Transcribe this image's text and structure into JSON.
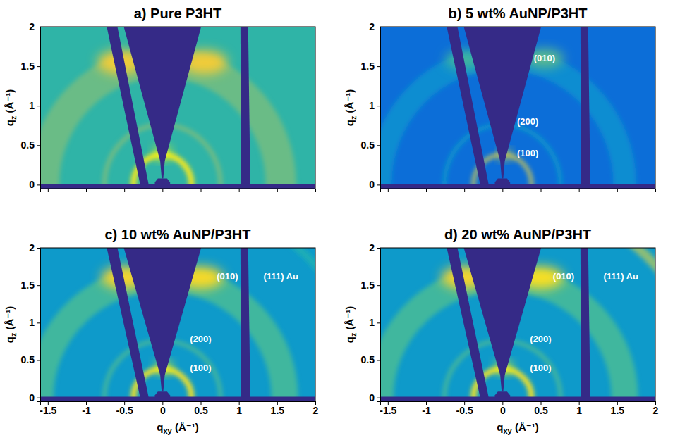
{
  "chart_data": [
    {
      "type": "heatmap",
      "title": "a) Pure P3HT",
      "ylabel": "qz (Å⁻¹)",
      "xlim": [
        -1.6,
        2
      ],
      "ylim": [
        -0.05,
        2
      ],
      "xticks": [
        -1.5,
        -1,
        -0.5,
        0,
        0.5,
        1,
        1.5,
        2
      ],
      "yticks": [
        0,
        0.5,
        1,
        1.5,
        2
      ],
      "tick_labels": "y",
      "zlim": [
        0,
        1
      ],
      "background": 0.47,
      "rings": [
        {
          "q": 0.38,
          "width": 0.07,
          "intensity": 0.95
        },
        {
          "q": 0.76,
          "width": 0.05,
          "intensity": 0.6
        },
        {
          "q": 1.55,
          "width": 0.4,
          "intensity": 0.57
        }
      ],
      "peaks": [
        {
          "x": -0.55,
          "y": 1.55,
          "rx": 0.3,
          "ry": 0.15,
          "intensity": 0.85
        },
        {
          "x": 0.55,
          "y": 1.55,
          "rx": 0.3,
          "ry": 0.15,
          "intensity": 0.85
        },
        {
          "x": 0,
          "y": 0.4,
          "rx": 0.1,
          "ry": 0.08,
          "intensity": 1
        }
      ],
      "masks": [
        [
          [
            -0.74,
            2.05
          ],
          [
            -0.6,
            2.05
          ],
          [
            -0.17,
            -0.05
          ],
          [
            -0.28,
            -0.05
          ]
        ],
        [
          [
            -0.52,
            2.05
          ],
          [
            0.52,
            2.05
          ],
          [
            0.03,
            0.3
          ],
          [
            0.01,
            0.08
          ],
          [
            -0.01,
            0.08
          ],
          [
            -0.03,
            0.3
          ]
        ],
        [
          [
            1.03,
            -0.05
          ],
          [
            1.15,
            -0.05
          ],
          [
            1.12,
            2.05
          ],
          [
            1.02,
            2.05
          ]
        ],
        [
          [
            -0.1,
            -0.05
          ],
          [
            0.1,
            -0.05
          ],
          [
            0.1,
            0.03
          ],
          [
            0.06,
            0.08
          ],
          [
            -0.06,
            0.08
          ],
          [
            -0.1,
            0.03
          ]
        ],
        [
          [
            -1.6,
            -0.05
          ],
          [
            2,
            -0.05
          ],
          [
            2,
            0.01
          ],
          [
            -1.6,
            0.01
          ]
        ]
      ]
    },
    {
      "type": "heatmap",
      "title": "b) 5 wt% AuNP/P3HT",
      "ylabel": "qz (Å⁻¹)",
      "xlim": [
        -1.6,
        2
      ],
      "ylim": [
        -0.05,
        2
      ],
      "xticks": [
        -1.5,
        -1,
        -0.5,
        0,
        0.5,
        1,
        1.5,
        2
      ],
      "yticks": [
        0,
        0.5,
        1,
        1.5,
        2
      ],
      "tick_labels": "y",
      "zlim": [
        0,
        1
      ],
      "background": 0.17,
      "rings": [
        {
          "q": 0.38,
          "width": 0.05,
          "intensity": 0.7
        },
        {
          "q": 0.76,
          "width": 0.05,
          "intensity": 0.32
        },
        {
          "q": 1.6,
          "width": 0.3,
          "intensity": 0.28
        }
      ],
      "peaks": [
        {
          "x": -0.5,
          "y": 1.58,
          "rx": 0.25,
          "ry": 0.12,
          "intensity": 0.5
        },
        {
          "x": 0.55,
          "y": 1.6,
          "rx": 0.25,
          "ry": 0.12,
          "intensity": 0.55
        },
        {
          "x": 0.03,
          "y": 0.38,
          "rx": 0.07,
          "ry": 0.06,
          "intensity": 0.92
        }
      ],
      "masks": [
        [
          [
            -0.74,
            2.05
          ],
          [
            -0.6,
            2.05
          ],
          [
            -0.17,
            -0.05
          ],
          [
            -0.28,
            -0.05
          ]
        ],
        [
          [
            -0.52,
            2.05
          ],
          [
            0.52,
            2.05
          ],
          [
            0.03,
            0.3
          ],
          [
            0.01,
            0.08
          ],
          [
            -0.01,
            0.08
          ],
          [
            -0.03,
            0.3
          ]
        ],
        [
          [
            1.03,
            -0.05
          ],
          [
            1.15,
            -0.05
          ],
          [
            1.12,
            2.05
          ],
          [
            1.02,
            2.05
          ]
        ],
        [
          [
            -0.1,
            -0.05
          ],
          [
            0.1,
            -0.05
          ],
          [
            0.1,
            0.03
          ],
          [
            0.06,
            0.08
          ],
          [
            -0.06,
            0.08
          ],
          [
            -0.1,
            0.03
          ]
        ],
        [
          [
            -1.6,
            -0.05
          ],
          [
            2,
            -0.05
          ],
          [
            2,
            0.01
          ],
          [
            -1.6,
            0.01
          ]
        ]
      ],
      "annotations": [
        {
          "text": "(010)",
          "x": 0.55,
          "y": 1.6
        },
        {
          "text": "(200)",
          "x": 0.33,
          "y": 0.8
        },
        {
          "text": "(100)",
          "x": 0.33,
          "y": 0.4
        }
      ]
    },
    {
      "type": "heatmap",
      "title": "c) 10 wt% AuNP/P3HT",
      "ylabel": "qz (Å⁻¹)",
      "xlabel": "qxy (Å⁻¹)",
      "xlim": [
        -1.6,
        2
      ],
      "ylim": [
        -0.05,
        2
      ],
      "xticks": [
        -1.5,
        -1,
        -0.5,
        0,
        0.5,
        1,
        1.5,
        2
      ],
      "yticks": [
        0,
        0.5,
        1,
        1.5,
        2
      ],
      "tick_labels": true,
      "zlim": [
        0,
        1
      ],
      "background": 0.33,
      "rings": [
        {
          "q": 0.38,
          "width": 0.07,
          "intensity": 0.93
        },
        {
          "q": 0.76,
          "width": 0.05,
          "intensity": 0.52
        },
        {
          "q": 1.6,
          "width": 0.35,
          "intensity": 0.5
        },
        {
          "q": 2.67,
          "width": 0.1,
          "intensity": 0.42
        }
      ],
      "peaks": [
        {
          "x": -0.5,
          "y": 1.6,
          "rx": 0.3,
          "ry": 0.15,
          "intensity": 0.88
        },
        {
          "x": 0.5,
          "y": 1.6,
          "rx": 0.3,
          "ry": 0.15,
          "intensity": 0.9
        },
        {
          "x": 0.02,
          "y": 0.4,
          "rx": 0.1,
          "ry": 0.08,
          "intensity": 1
        }
      ],
      "masks": [
        [
          [
            -0.74,
            2.05
          ],
          [
            -0.6,
            2.05
          ],
          [
            -0.17,
            -0.05
          ],
          [
            -0.28,
            -0.05
          ]
        ],
        [
          [
            -0.52,
            2.05
          ],
          [
            0.52,
            2.05
          ],
          [
            0.03,
            0.3
          ],
          [
            0.01,
            0.08
          ],
          [
            -0.01,
            0.08
          ],
          [
            -0.03,
            0.3
          ]
        ],
        [
          [
            1.03,
            -0.05
          ],
          [
            1.15,
            -0.05
          ],
          [
            1.12,
            2.05
          ],
          [
            1.02,
            2.05
          ]
        ],
        [
          [
            -0.1,
            -0.05
          ],
          [
            0.1,
            -0.05
          ],
          [
            0.1,
            0.03
          ],
          [
            0.06,
            0.08
          ],
          [
            -0.06,
            0.08
          ],
          [
            -0.1,
            0.03
          ]
        ],
        [
          [
            -1.6,
            -0.05
          ],
          [
            2,
            -0.05
          ],
          [
            2,
            0.01
          ],
          [
            -1.6,
            0.01
          ]
        ]
      ],
      "annotations": [
        {
          "text": "(010)",
          "x": 0.85,
          "y": 1.62
        },
        {
          "text": "(111) Au",
          "x": 1.55,
          "y": 1.62
        },
        {
          "text": "(200)",
          "x": 0.5,
          "y": 0.78
        },
        {
          "text": "(100)",
          "x": 0.5,
          "y": 0.4
        }
      ]
    },
    {
      "type": "heatmap",
      "title": "d) 20 wt% AuNP/P3HT",
      "ylabel": "qz (Å⁻¹)",
      "xlabel": "qxy (Å⁻¹)",
      "xlim": [
        -1.6,
        2
      ],
      "ylim": [
        -0.05,
        2
      ],
      "xticks": [
        -1.5,
        -1,
        -0.5,
        0,
        0.5,
        1,
        1.5,
        2
      ],
      "yticks": [
        0,
        0.5,
        1,
        1.5,
        2
      ],
      "tick_labels": true,
      "zlim": [
        0,
        1
      ],
      "background": 0.33,
      "rings": [
        {
          "q": 0.38,
          "width": 0.07,
          "intensity": 0.93
        },
        {
          "q": 0.76,
          "width": 0.05,
          "intensity": 0.52
        },
        {
          "q": 1.6,
          "width": 0.35,
          "intensity": 0.5
        },
        {
          "q": 2.67,
          "width": 0.12,
          "intensity": 0.62
        }
      ],
      "peaks": [
        {
          "x": -0.5,
          "y": 1.6,
          "rx": 0.3,
          "ry": 0.15,
          "intensity": 0.88
        },
        {
          "x": 0.5,
          "y": 1.6,
          "rx": 0.3,
          "ry": 0.15,
          "intensity": 0.92
        },
        {
          "x": 0.02,
          "y": 0.4,
          "rx": 0.1,
          "ry": 0.08,
          "intensity": 1
        }
      ],
      "masks": [
        [
          [
            -0.74,
            2.05
          ],
          [
            -0.6,
            2.05
          ],
          [
            -0.17,
            -0.05
          ],
          [
            -0.28,
            -0.05
          ]
        ],
        [
          [
            -0.52,
            2.05
          ],
          [
            0.52,
            2.05
          ],
          [
            0.03,
            0.3
          ],
          [
            0.01,
            0.08
          ],
          [
            -0.01,
            0.08
          ],
          [
            -0.03,
            0.3
          ]
        ],
        [
          [
            1.03,
            -0.05
          ],
          [
            1.15,
            -0.05
          ],
          [
            1.12,
            2.05
          ],
          [
            1.02,
            2.05
          ]
        ],
        [
          [
            -0.1,
            -0.05
          ],
          [
            0.1,
            -0.05
          ],
          [
            0.1,
            0.03
          ],
          [
            0.06,
            0.08
          ],
          [
            -0.06,
            0.08
          ],
          [
            -0.1,
            0.03
          ]
        ],
        [
          [
            -1.6,
            -0.05
          ],
          [
            2,
            -0.05
          ],
          [
            2,
            0.01
          ],
          [
            -1.6,
            0.01
          ]
        ]
      ],
      "annotations": [
        {
          "text": "(010)",
          "x": 0.8,
          "y": 1.62
        },
        {
          "text": "(111) Au",
          "x": 1.55,
          "y": 1.62
        },
        {
          "text": "(200)",
          "x": 0.5,
          "y": 0.78
        },
        {
          "text": "(100)",
          "x": 0.5,
          "y": 0.4
        }
      ]
    }
  ]
}
